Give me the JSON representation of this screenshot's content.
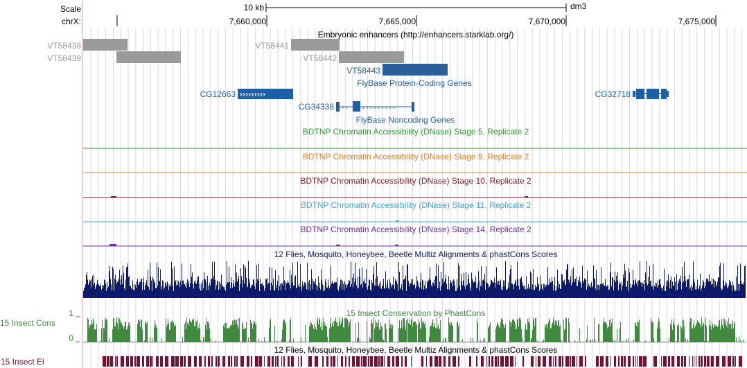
{
  "ruler": {
    "scale_label": "Scale",
    "scale_bar_label": "10 kb",
    "assembly": "dm3",
    "chrom_label": "chrX:",
    "positions": [
      "7,660,000",
      "7,665,000",
      "7,670,000",
      "7,675,000"
    ]
  },
  "tracks": {
    "enhancers": {
      "title": "Embryonic enhancers (http://enhancers.starklab.org/)",
      "items": [
        {
          "name": "VT58438",
          "highlight": false
        },
        {
          "name": "VT58439",
          "highlight": false
        },
        {
          "name": "VT58441",
          "highlight": false
        },
        {
          "name": "VT58442",
          "highlight": false
        },
        {
          "name": "VT58443",
          "highlight": true
        }
      ]
    },
    "protein_genes": {
      "title": "FlyBase Protein-Coding Genes",
      "genes": [
        "CG12663",
        "CG32718"
      ]
    },
    "noncoding_genes": {
      "title": "FlyBase Noncoding Genes",
      "genes": [
        "CG34338"
      ]
    },
    "dnase": [
      {
        "title": "BDTNP Chromatin Accessibility (DNase) Stage 5, Replicate 2",
        "color": "#2ca02c"
      },
      {
        "title": "BDTNP Chromatin Accessibility (DNase) Stage 9, Replicate 2",
        "color": "#f07a20"
      },
      {
        "title": "BDTNP Chromatin Accessibility (DNase) Stage 10, Replicate 2",
        "color": "#8b1a1a"
      },
      {
        "title": "BDTNP Chromatin Accessibility (DNase) Stage 11, Replicate 2",
        "color": "#3fa8d8"
      },
      {
        "title": "BDTNP Chromatin Accessibility (DNase) Stage 14, Replicate 2",
        "color": "#7030a0"
      }
    ],
    "multiz": {
      "title": "12 Flies, Mosquito, Honeybee, Beetle Multiz Alignments & phastCons Scores",
      "color": "#0d1a6b"
    },
    "phastcons": {
      "title": "15 Insect Conservation by PhastCons",
      "side_label": "15 Insect Cons",
      "axis_max": "1",
      "axis_min": "0",
      "color": "#3f8a3f"
    },
    "elements": {
      "title": "12 Flies, Mosquito, Honeybee, Beetle Multiz Alignments & phastCons Scores",
      "side_label": "15 Insect El",
      "color": "#7a1030"
    }
  },
  "colors": {
    "gene": "#1f5fa8",
    "enhancer_gray": "#9a9a9a",
    "enhancer_highlight": "#2a5f98",
    "grid": "#d6d6ee",
    "left_border": "#f4b8b8"
  }
}
